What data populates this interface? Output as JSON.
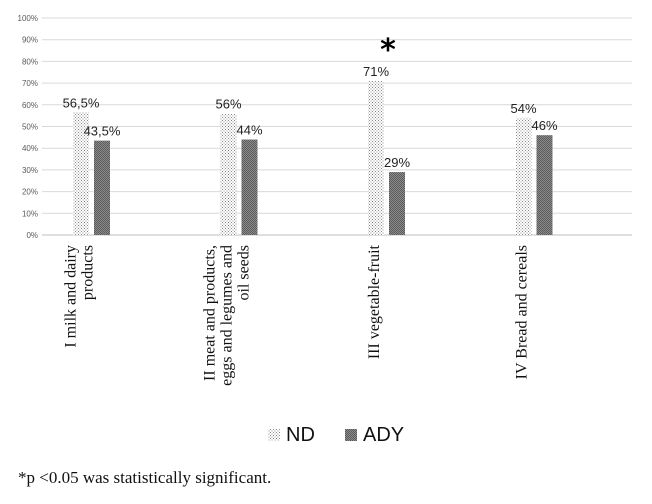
{
  "chart_data": {
    "type": "bar",
    "categories": [
      [
        "I milk and dairy",
        "products"
      ],
      [
        "II meat and products,",
        "eggs and legumes and",
        "oil seeds"
      ],
      [
        "III vegetable-fruit"
      ],
      [
        "IV Bread and cereals"
      ]
    ],
    "series": [
      {
        "name": "ND",
        "values": [
          56.5,
          56,
          71,
          54
        ],
        "labels": [
          "56,5%",
          "56%",
          "71%",
          "54%"
        ],
        "pattern": "dotted"
      },
      {
        "name": "ADY",
        "values": [
          43.5,
          44,
          29,
          46
        ],
        "labels": [
          "43,5%",
          "44%",
          "29%",
          "46%"
        ],
        "color": "#737373"
      }
    ],
    "ylim": [
      0,
      100
    ],
    "yticks": [
      "0%",
      "10%",
      "20%",
      "30%",
      "40%",
      "50%",
      "60%",
      "70%",
      "80%",
      "90%",
      "100%"
    ],
    "grid": true,
    "legend_position": "bottom",
    "significance_marker": {
      "category_index": 2,
      "symbol": "*"
    }
  },
  "footnote": "*p <0.05 was statistically significant."
}
